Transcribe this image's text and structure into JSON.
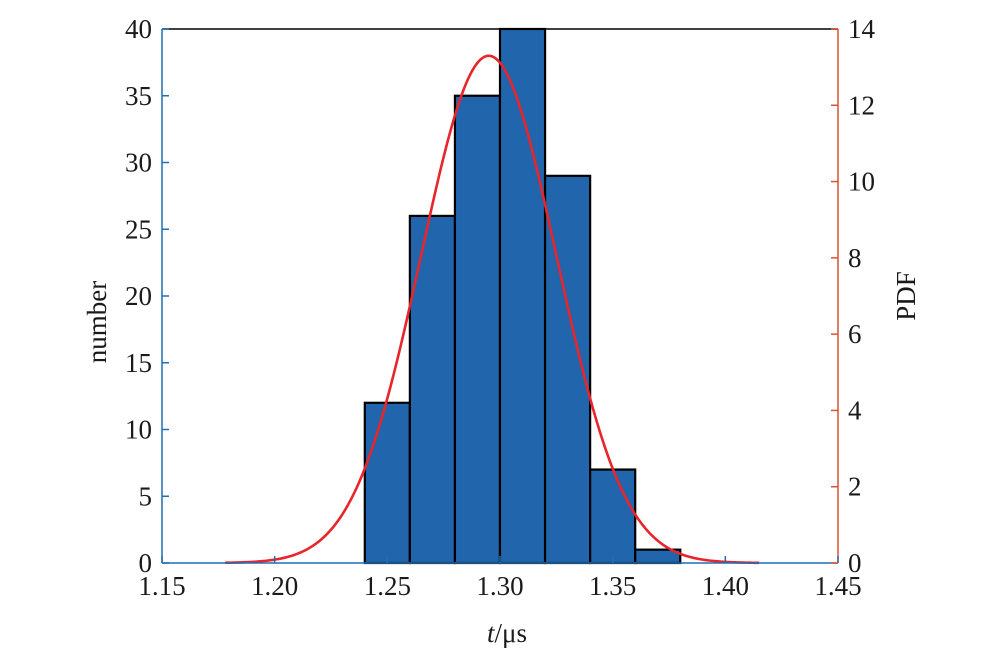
{
  "chart_data": {
    "type": "bar",
    "subtype": "histogram-with-pdf-overlay",
    "xlabel_var": "t",
    "xlabel_unit": "/μs",
    "ylabel": "number",
    "y2label": "PDF",
    "xlim": [
      1.15,
      1.45
    ],
    "ylim": [
      0,
      40
    ],
    "y2lim": [
      0,
      14
    ],
    "xticks": [
      "1.15",
      "1.20",
      "1.25",
      "1.30",
      "1.35",
      "1.40",
      "1.45"
    ],
    "yticks": [
      "0",
      "5",
      "10",
      "15",
      "20",
      "25",
      "30",
      "35",
      "40"
    ],
    "y2ticks": [
      "0",
      "2",
      "4",
      "6",
      "8",
      "10",
      "12",
      "14"
    ],
    "bins": [
      {
        "start": 1.24,
        "end": 1.26,
        "count": 12
      },
      {
        "start": 1.26,
        "end": 1.28,
        "count": 26
      },
      {
        "start": 1.28,
        "end": 1.3,
        "count": 35
      },
      {
        "start": 1.3,
        "end": 1.32,
        "count": 40
      },
      {
        "start": 1.32,
        "end": 1.34,
        "count": 29
      },
      {
        "start": 1.34,
        "end": 1.36,
        "count": 7
      },
      {
        "start": 1.36,
        "end": 1.38,
        "count": 1
      }
    ],
    "pdf_curve": {
      "type": "normal",
      "mean": 1.295,
      "std": 0.03,
      "x_range": [
        1.178,
        1.415
      ]
    },
    "colors": {
      "bar_fill": "#2166ac",
      "bar_edge": "#000000",
      "curve": "#e8252a",
      "left_axis": "#1f6fb5",
      "right_axis": "#d9532b",
      "frame": "#000000"
    },
    "grid": false,
    "legend": "none"
  }
}
